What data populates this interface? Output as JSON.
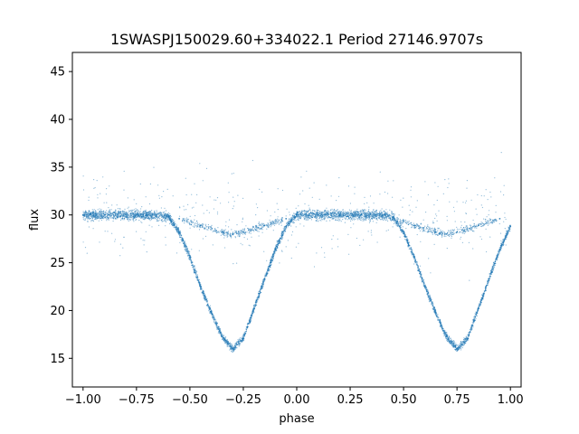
{
  "chart_data": {
    "type": "scatter",
    "title": "1SWASPJ150029.60+334022.1 Period 27146.9707s",
    "xlabel": "phase",
    "ylabel": "flux",
    "xlim": [
      -1.05,
      1.05
    ],
    "ylim": [
      12.0,
      47.0
    ],
    "grid": false,
    "legend": "none",
    "point_color": "#1f77b4",
    "x_ticks": [
      -1.0,
      -0.75,
      -0.5,
      -0.25,
      0.0,
      0.25,
      0.5,
      0.75,
      1.0
    ],
    "x_tick_labels": [
      "−1.00",
      "−0.75",
      "−0.50",
      "−0.25",
      "0.00",
      "0.25",
      "0.50",
      "0.75",
      "1.00"
    ],
    "y_ticks": [
      15,
      20,
      25,
      30,
      35,
      40,
      45
    ],
    "y_tick_labels": [
      "15",
      "20",
      "25",
      "30",
      "35",
      "40",
      "45"
    ],
    "series": [
      {
        "x": [
          -1.0,
          -0.9,
          -0.8,
          -0.7,
          -0.6,
          -0.55,
          -0.5,
          -0.45,
          -0.4,
          -0.35,
          -0.3,
          -0.25,
          -0.2,
          -0.15,
          -0.1,
          -0.05,
          0.0,
          0.1,
          0.2,
          0.3,
          0.4,
          0.45,
          0.5,
          0.55,
          0.6,
          0.65,
          0.7,
          0.75,
          0.8,
          0.85,
          0.9,
          0.95,
          1.0
        ],
        "y": [
          30.0,
          30.0,
          30.0,
          30.0,
          29.8,
          28.2,
          25.6,
          22.5,
          19.8,
          17.3,
          16.0,
          17.1,
          20.2,
          23.3,
          26.4,
          28.8,
          30.0,
          30.0,
          30.0,
          30.0,
          30.0,
          29.8,
          28.2,
          25.6,
          22.5,
          19.8,
          17.3,
          16.0,
          17.1,
          20.2,
          23.3,
          26.4,
          28.8
        ]
      },
      {
        "x": [
          -0.55,
          -0.45,
          -0.35,
          -0.3,
          -0.25,
          -0.15,
          -0.05,
          0.45,
          0.55,
          0.65,
          0.7,
          0.75,
          0.85,
          0.95
        ],
        "y": [
          29.6,
          28.9,
          28.2,
          28.0,
          28.2,
          28.9,
          29.6,
          29.6,
          28.9,
          28.2,
          28.0,
          28.2,
          28.9,
          29.6
        ]
      }
    ]
  }
}
